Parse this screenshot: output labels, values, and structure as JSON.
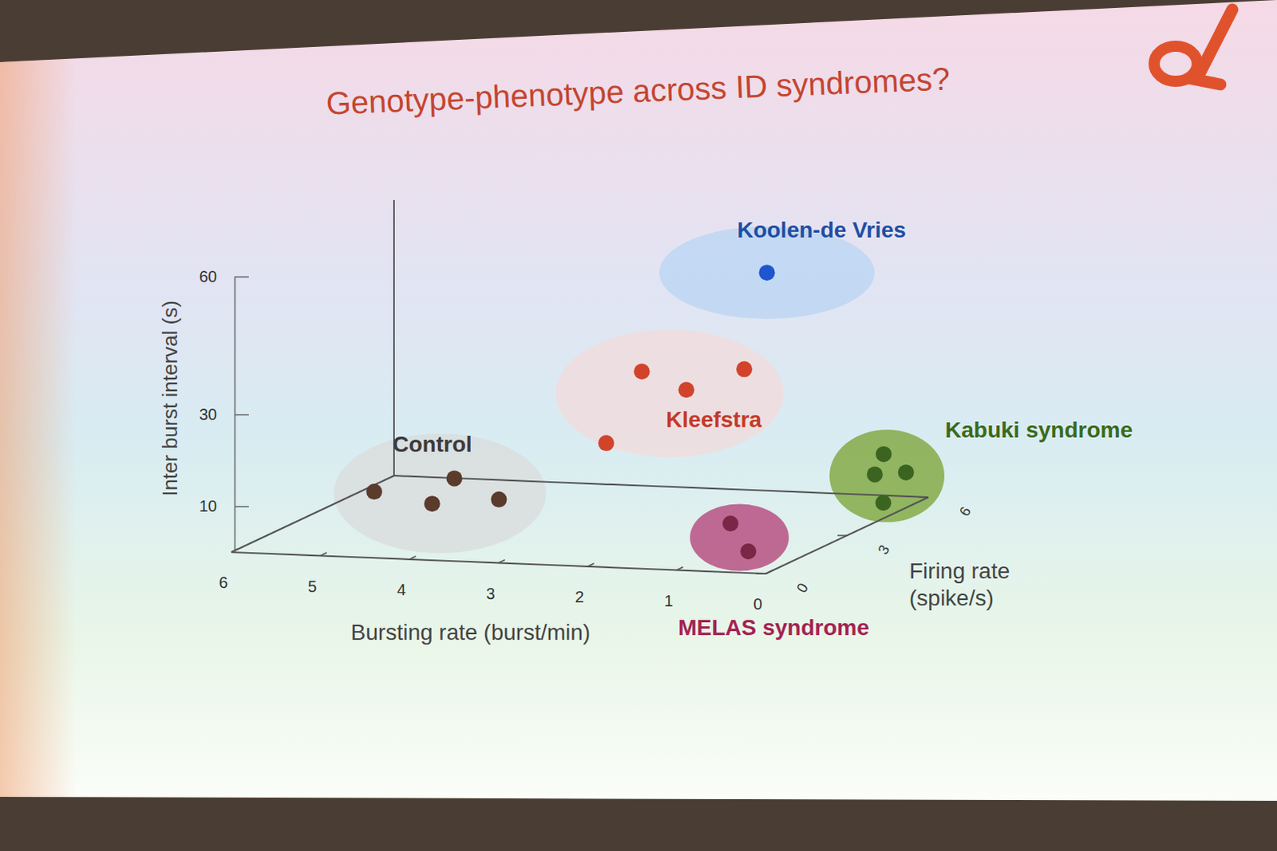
{
  "chart_data": {
    "type": "scatter3d",
    "title": "Genotype-phenotype across ID syndromes?",
    "xlabel": "Bursting rate (burst/min)",
    "ylabel": "Inter burst interval (s)",
    "zlabel": [
      "Firing rate",
      "(spike/s)"
    ],
    "xlim": [
      6,
      0
    ],
    "xticks": [
      6,
      5,
      4,
      3,
      2,
      1,
      0
    ],
    "ylim": [
      0,
      60
    ],
    "yticks": [
      10,
      30,
      60
    ],
    "zlim": [
      0,
      6
    ],
    "zticks": [
      0,
      3,
      6
    ],
    "series": [
      {
        "name": "Control",
        "color": "#5b3b2c",
        "x": [
          4.7,
          4.05,
          3.8,
          3.3
        ],
        "y": [
          11.4,
          9.3,
          15.0,
          10.8
        ],
        "z": [
          1,
          1,
          1,
          1
        ]
      },
      {
        "name": "Kleefstra",
        "color": "#d2432b",
        "x": [
          2.0,
          1.5,
          0.85,
          2.4
        ],
        "y": [
          36.9,
          33.3,
          38.3,
          21.0
        ],
        "z": [
          2,
          2,
          2,
          2
        ]
      },
      {
        "name": "Koolen-de Vries",
        "color": "#1f56d0",
        "x": [
          0.9
        ],
        "y": [
          56.5
        ],
        "z": [
          3
        ]
      },
      {
        "name": "Kabuki syndrome",
        "color": "#3b6420",
        "x": [
          0.35,
          0.45,
          0.1,
          0.05
        ],
        "y": [
          10.5,
          6.0,
          6.7,
          2.9
        ],
        "z": [
          5.5,
          5.5,
          5.5,
          4.5
        ]
      },
      {
        "name": "MELAS syndrome",
        "color": "#7a2647",
        "x": [
          0.7,
          0.5
        ],
        "y": [
          7.6,
          1.7
        ],
        "z": [
          1,
          1
        ]
      }
    ]
  }
}
